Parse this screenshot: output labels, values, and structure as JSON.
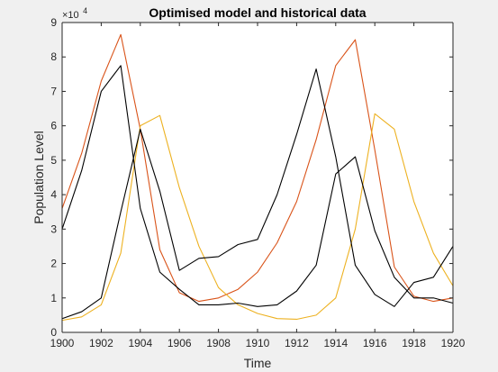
{
  "chart_data": {
    "type": "line",
    "title": "Optimised model and historical data",
    "xlabel": "Time",
    "ylabel": "Population Level",
    "y_exponent_label": {
      "base": "×10",
      "power": "4"
    },
    "xlim": [
      1900,
      1920
    ],
    "ylim": [
      0,
      9
    ],
    "y_scale_factor": 10000,
    "xticks": [
      1900,
      1902,
      1904,
      1906,
      1908,
      1910,
      1912,
      1914,
      1916,
      1918,
      1920
    ],
    "yticks": [
      0,
      1,
      2,
      3,
      4,
      5,
      6,
      7,
      8,
      9
    ],
    "grid": false,
    "legend": "none",
    "x": [
      1900,
      1901,
      1902,
      1903,
      1904,
      1905,
      1906,
      1907,
      1908,
      1909,
      1910,
      1911,
      1912,
      1913,
      1914,
      1915,
      1916,
      1917,
      1918,
      1919,
      1920
    ],
    "series": [
      {
        "color": "#D95319",
        "values": [
          3.6,
          5.2,
          7.3,
          8.65,
          5.9,
          2.4,
          1.15,
          0.9,
          1.0,
          1.25,
          1.75,
          2.6,
          3.8,
          5.6,
          7.75,
          8.5,
          5.3,
          1.9,
          1.05,
          0.9,
          1.0
        ]
      },
      {
        "color": "#EDB120",
        "values": [
          0.35,
          0.45,
          0.8,
          2.3,
          6.0,
          6.3,
          4.2,
          2.5,
          1.3,
          0.8,
          0.55,
          0.4,
          0.38,
          0.5,
          1.0,
          3.0,
          6.35,
          5.9,
          3.8,
          2.3,
          1.35
        ]
      },
      {
        "color": "#000000",
        "values": [
          3.0,
          4.7,
          7.0,
          7.75,
          3.6,
          1.75,
          1.25,
          0.8,
          0.8,
          0.85,
          0.75,
          0.8,
          1.2,
          1.95,
          4.6,
          5.1,
          2.95,
          1.6,
          1.0,
          1.0,
          0.85
        ]
      },
      {
        "color": "#000000",
        "values": [
          0.4,
          0.6,
          1.0,
          3.5,
          5.9,
          4.1,
          1.8,
          2.15,
          2.2,
          2.55,
          2.7,
          4.0,
          5.75,
          7.65,
          5.1,
          1.95,
          1.1,
          0.75,
          1.45,
          1.6,
          2.5
        ]
      }
    ]
  }
}
